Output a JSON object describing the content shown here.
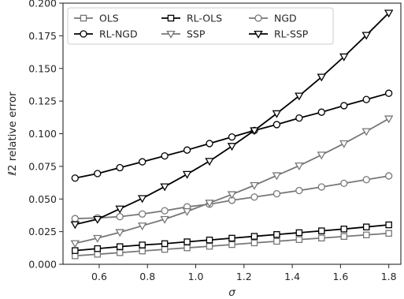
{
  "chart_data": {
    "type": "line",
    "xlabel": "σ",
    "ylabel": "ℓ2 relative error",
    "xlim": [
      0.45,
      1.85
    ],
    "ylim": [
      0.0,
      0.2
    ],
    "xticks": [
      0.6,
      0.8,
      1.0,
      1.2,
      1.4,
      1.6,
      1.8
    ],
    "yticks": [
      0.0,
      0.025,
      0.05,
      0.075,
      0.1,
      0.125,
      0.15,
      0.175,
      0.2
    ],
    "xtick_labels": [
      "0.6",
      "0.8",
      "1.0",
      "1.2",
      "1.4",
      "1.6",
      "1.8"
    ],
    "ytick_labels": [
      "0.000",
      "0.025",
      "0.050",
      "0.075",
      "0.100",
      "0.125",
      "0.150",
      "0.175",
      "0.200"
    ],
    "grid": false,
    "legend_position": "top-left",
    "legend_columns": 3,
    "x": [
      0.5,
      0.5929,
      0.6857,
      0.7786,
      0.8714,
      0.9643,
      1.0571,
      1.15,
      1.2429,
      1.3357,
      1.4286,
      1.5214,
      1.6143,
      1.7071,
      1.8
    ],
    "series": [
      {
        "name": "OLS",
        "color": "#777777",
        "marker": "square",
        "values": [
          0.0065,
          0.0077,
          0.0089,
          0.0102,
          0.0114,
          0.0126,
          0.0138,
          0.0151,
          0.0164,
          0.0176,
          0.0189,
          0.0201,
          0.0213,
          0.0225,
          0.0237
        ]
      },
      {
        "name": "RL-OLS",
        "color": "#000000",
        "marker": "square",
        "values": [
          0.0105,
          0.012,
          0.0135,
          0.0148,
          0.0158,
          0.0172,
          0.0186,
          0.02,
          0.0214,
          0.0228,
          0.0242,
          0.0256,
          0.027,
          0.0286,
          0.0302
        ]
      },
      {
        "name": "NGD",
        "color": "#777777",
        "marker": "circle",
        "values": [
          0.035,
          0.0355,
          0.0365,
          0.0385,
          0.041,
          0.044,
          0.046,
          0.049,
          0.0515,
          0.054,
          0.0565,
          0.0592,
          0.062,
          0.0648,
          0.0677
        ]
      },
      {
        "name": "RL-NGD",
        "color": "#000000",
        "marker": "circle",
        "values": [
          0.066,
          0.0695,
          0.074,
          0.0785,
          0.083,
          0.0875,
          0.0925,
          0.0975,
          0.1025,
          0.107,
          0.112,
          0.1165,
          0.1215,
          0.1262,
          0.131
        ]
      },
      {
        "name": "SSP",
        "color": "#777777",
        "marker": "triangle-down",
        "values": [
          0.016,
          0.02,
          0.0245,
          0.0295,
          0.0345,
          0.0405,
          0.047,
          0.0535,
          0.0605,
          0.068,
          0.0755,
          0.0838,
          0.0925,
          0.1018,
          0.1115
        ]
      },
      {
        "name": "RL-SSP",
        "color": "#000000",
        "marker": "triangle-down",
        "values": [
          0.0305,
          0.0345,
          0.0425,
          0.0505,
          0.0595,
          0.069,
          0.079,
          0.0905,
          0.1025,
          0.1155,
          0.129,
          0.1435,
          0.159,
          0.1755,
          0.1925
        ]
      }
    ]
  }
}
